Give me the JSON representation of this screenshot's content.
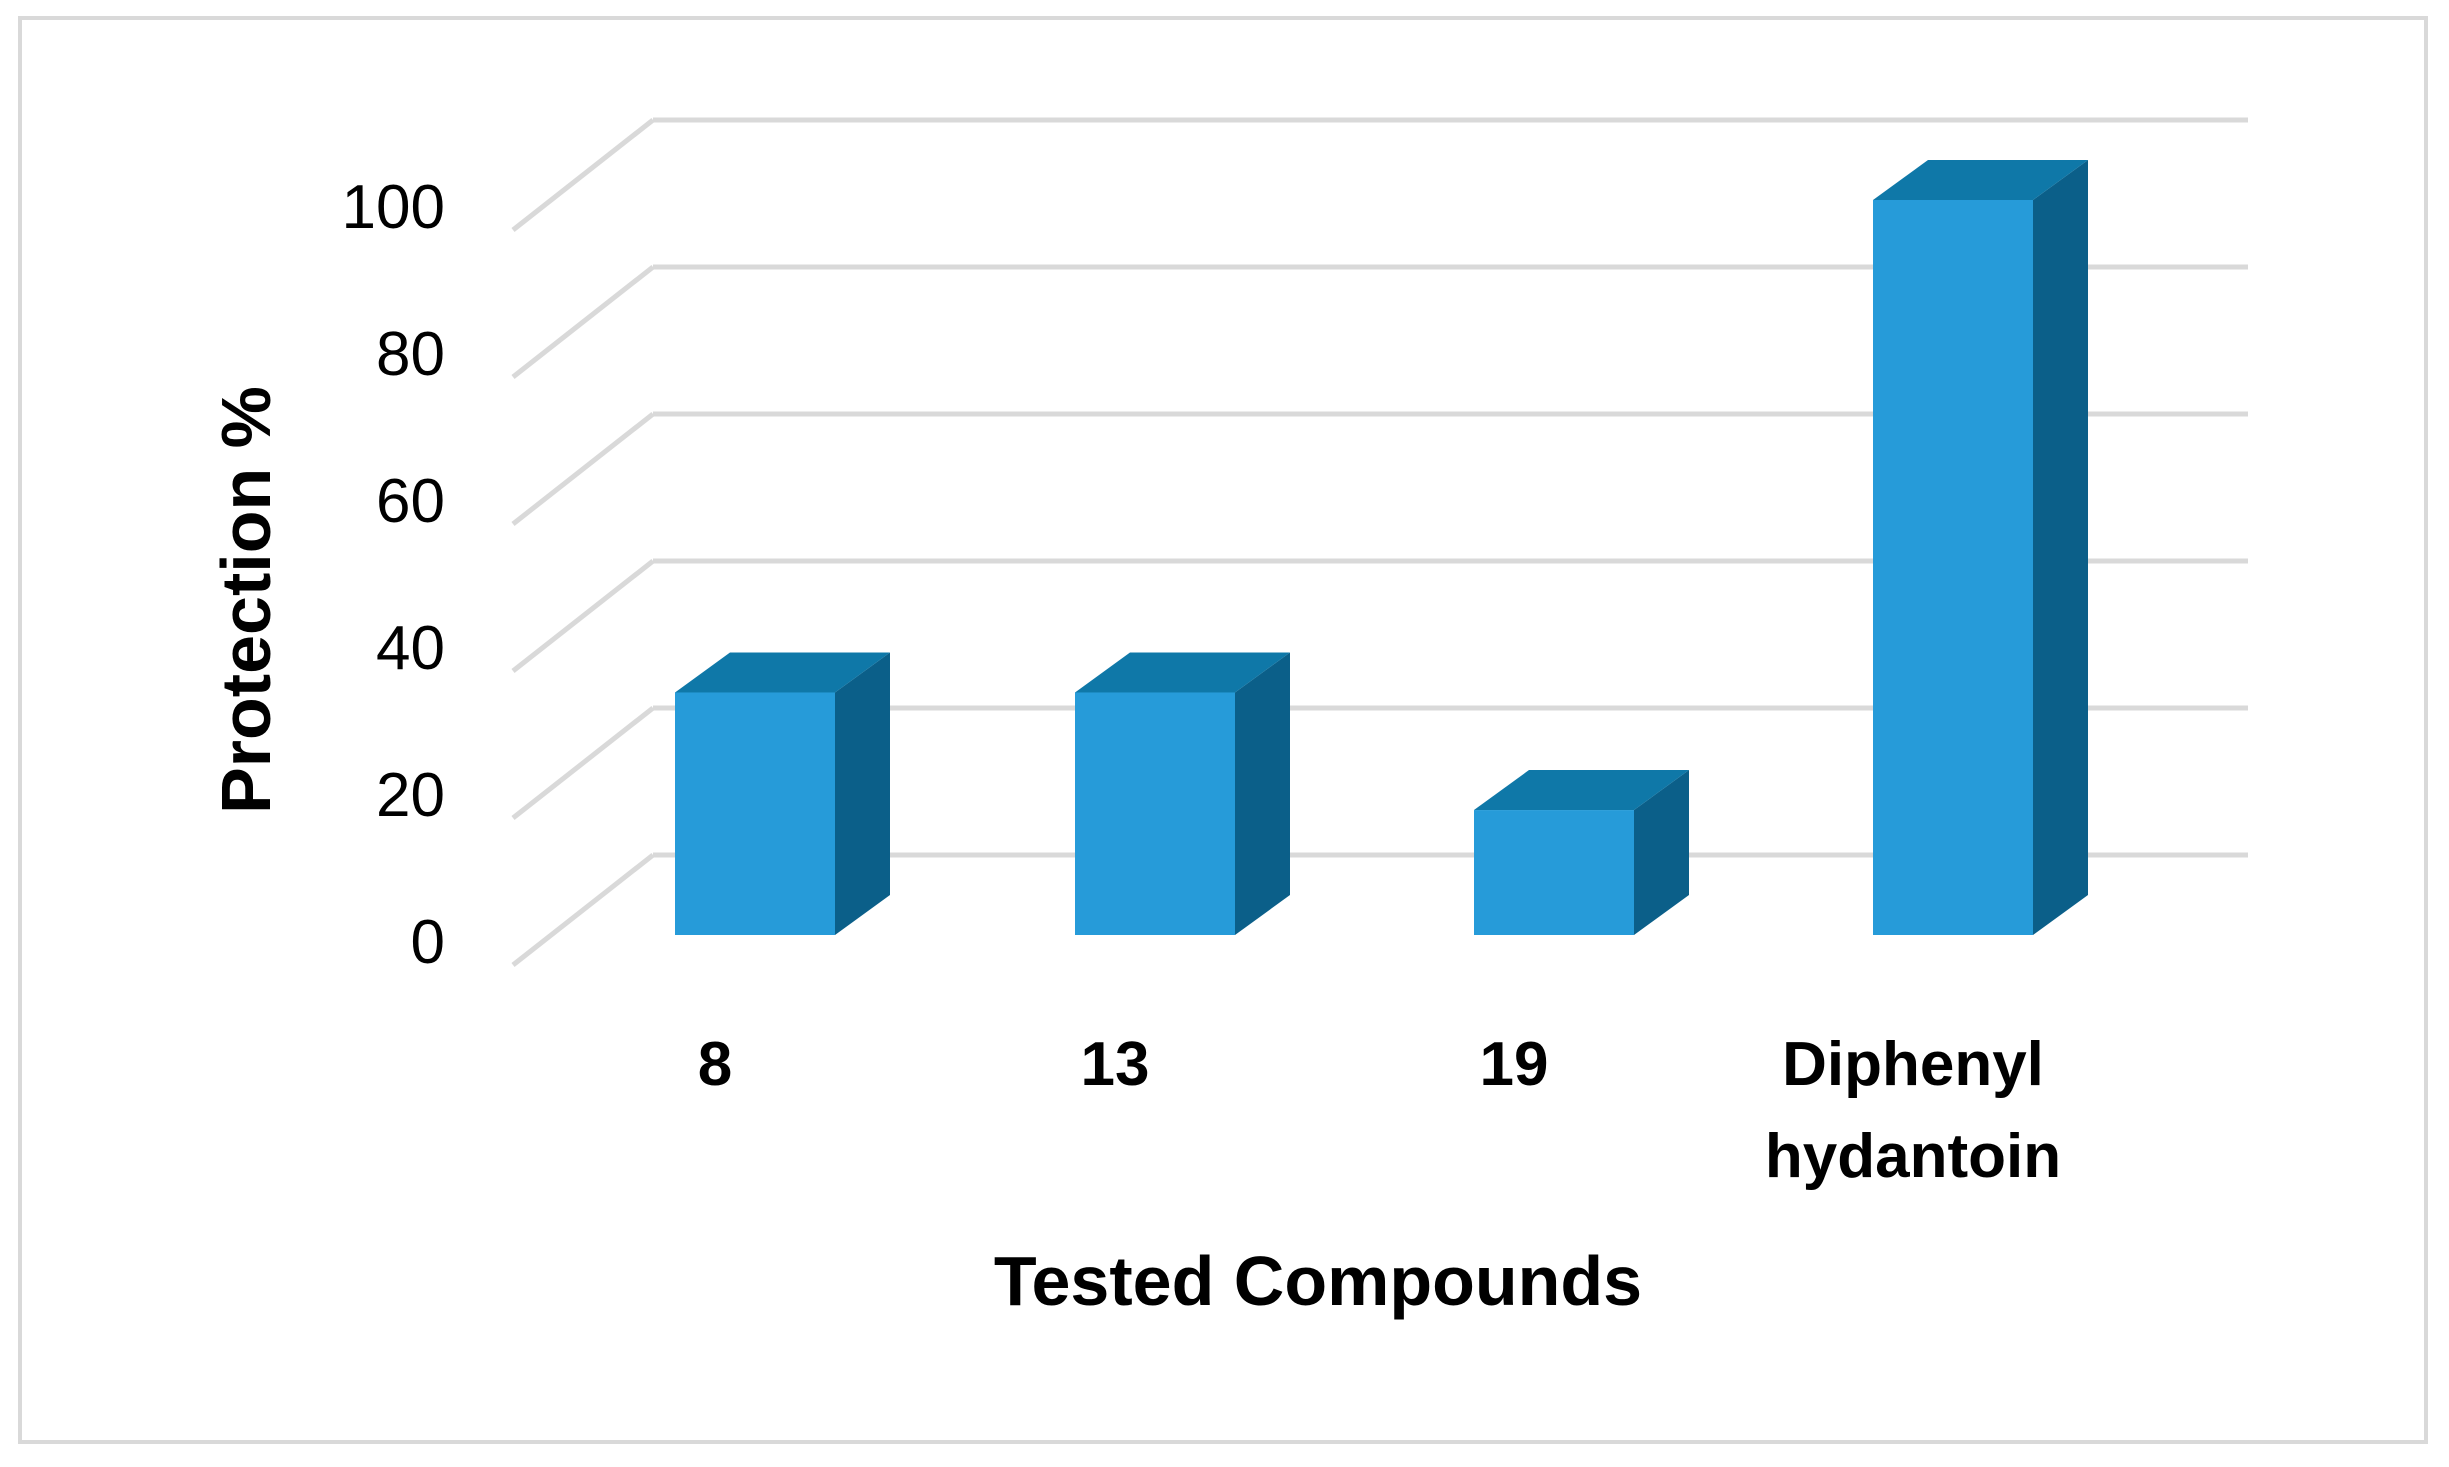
{
  "chart_data": {
    "type": "bar",
    "title": "",
    "xlabel": "Tested Compounds",
    "ylabel": "Protection %",
    "categories": [
      "8",
      "13",
      "19",
      "Diphenyl hydantoin"
    ],
    "category_lines": [
      [
        "8"
      ],
      [
        "13"
      ],
      [
        "19"
      ],
      [
        "Diphenyl",
        "hydantoin"
      ]
    ],
    "values": [
      33,
      33,
      17,
      100
    ],
    "ylim": [
      0,
      110
    ],
    "yticks": [
      0,
      20,
      40,
      60,
      80,
      100
    ],
    "grid": true,
    "legend": "none",
    "style": "3d-column",
    "colors": {
      "bar_front": "#269bd9",
      "bar_top": "#0f78a8",
      "bar_side": "#0b5f89",
      "grid": "#d9d9d9",
      "frame": "#d9d9d9"
    }
  }
}
